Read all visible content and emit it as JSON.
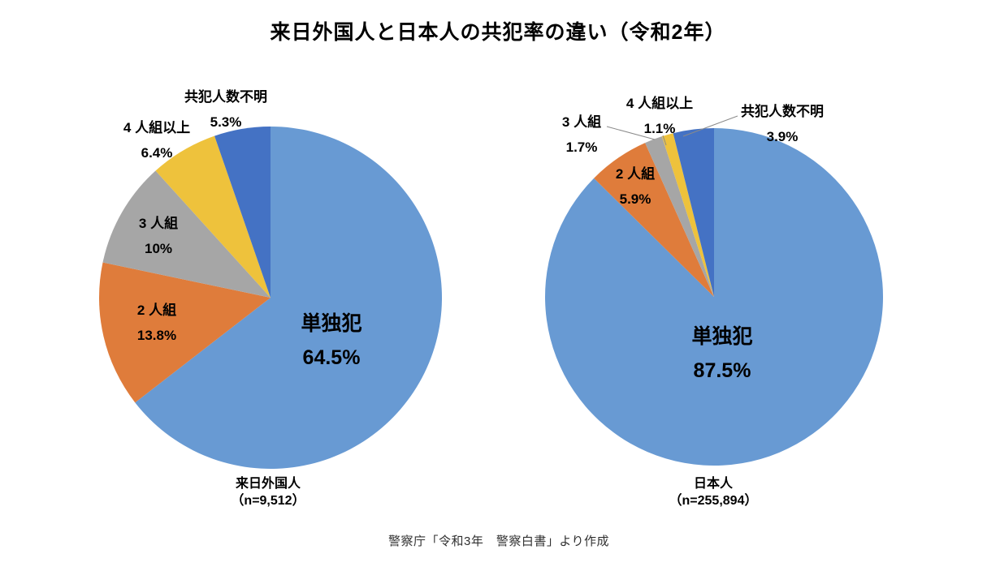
{
  "page": {
    "title": "来日外国人と日本人の共犯率の違い（令和2年）",
    "source_note": "警察庁「令和3年　警察白書」より作成",
    "background_color": "#ffffff"
  },
  "palette": {
    "solo_blue": "#689AD3",
    "pair_orange": "#DF7C3B",
    "trio_gray": "#A6A6A6",
    "four_plus_yellow": "#EEC23C",
    "unknown_dark_blue": "#4472C4",
    "leader_line": "#8a8a8a"
  },
  "chart_data": [
    {
      "type": "pie",
      "name": "来日外国人",
      "n_label": "（n=9,512）",
      "start_angle": "12-oclock",
      "direction": "clockwise",
      "slices": [
        {
          "label": "単独犯",
          "pct_text": "64.5%",
          "value": 64.5,
          "color": "#689AD3"
        },
        {
          "label": "2 人組",
          "pct_text": "13.8%",
          "value": 13.8,
          "color": "#DF7C3B"
        },
        {
          "label": "3 人組",
          "pct_text": "10%",
          "value": 10.0,
          "color": "#A6A6A6"
        },
        {
          "label": "4 人組以上",
          "pct_text": "6.4%",
          "value": 6.4,
          "color": "#EEC23C"
        },
        {
          "label": "共犯人数不明",
          "pct_text": "5.3%",
          "value": 5.3,
          "color": "#4472C4"
        }
      ]
    },
    {
      "type": "pie",
      "name": "日本人",
      "n_label": "（n=255,894）",
      "start_angle": "12-oclock",
      "direction": "clockwise",
      "slices": [
        {
          "label": "単独犯",
          "pct_text": "87.5%",
          "value": 87.5,
          "color": "#689AD3"
        },
        {
          "label": "2 人組",
          "pct_text": "5.9%",
          "value": 5.9,
          "color": "#DF7C3B"
        },
        {
          "label": "3 人組",
          "pct_text": "1.7%",
          "value": 1.7,
          "color": "#A6A6A6"
        },
        {
          "label": "4 人組以上",
          "pct_text": "1.1%",
          "value": 1.1,
          "color": "#EEC23C"
        },
        {
          "label": "共犯人数不明",
          "pct_text": "3.9%",
          "value": 3.9,
          "color": "#4472C4"
        }
      ]
    }
  ]
}
